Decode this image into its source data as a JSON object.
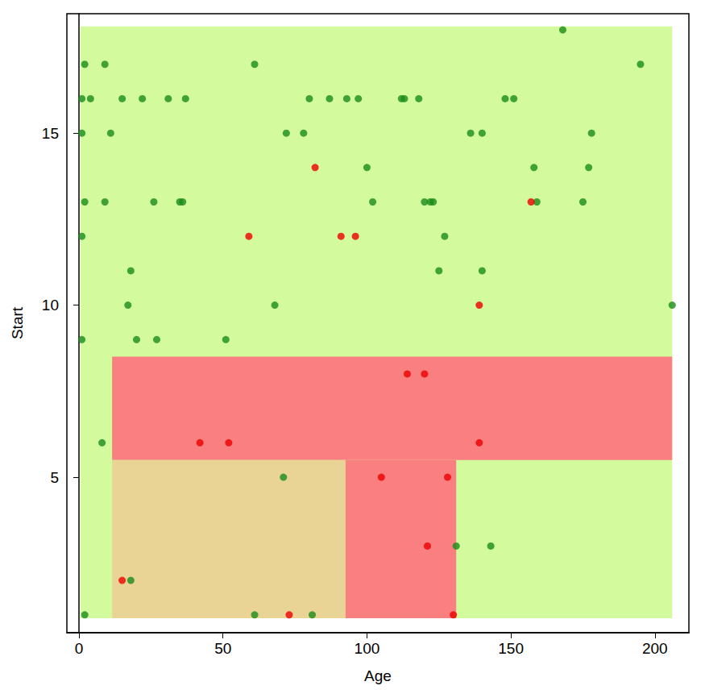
{
  "chart_data": {
    "type": "scatter",
    "x_label": "Age",
    "y_label": "Start",
    "xlim": [
      -4.2,
      211.8
    ],
    "ylim": [
      0.48,
      18.47
    ],
    "xticks": [
      0,
      50,
      100,
      150,
      200
    ],
    "yticks": [
      5,
      10,
      15
    ],
    "grid": false,
    "regions": [
      {
        "x": [
          0.5,
          206
        ],
        "y": [
          0.9,
          18.1
        ],
        "color": "#d3fa9d"
      },
      {
        "x": [
          11.5,
          206
        ],
        "y": [
          5.5,
          8.5
        ],
        "color": "#f97f80"
      },
      {
        "x": [
          92.5,
          131
        ],
        "y": [
          0.9,
          5.5
        ],
        "color": "#f97f80"
      },
      {
        "x": [
          11.5,
          92.5
        ],
        "y": [
          0.9,
          5.5
        ],
        "color": "#e9d495"
      }
    ],
    "series": [
      {
        "color": "#1a8c1a",
        "marker": "circle",
        "x": [
          168,
          2,
          9,
          61,
          195,
          1,
          4,
          15,
          22,
          31,
          37,
          80,
          87,
          93,
          97,
          112,
          113,
          118,
          148,
          151,
          1,
          11,
          72,
          78,
          136,
          140,
          178,
          100,
          158,
          177,
          2,
          9,
          26,
          35,
          36,
          102,
          120,
          122,
          123,
          159,
          175,
          1,
          127,
          18,
          125,
          140,
          17,
          68,
          206,
          1,
          20,
          27,
          51,
          8,
          71,
          131,
          143,
          18,
          2,
          61,
          81
        ],
        "y": [
          18,
          17,
          17,
          17,
          17,
          16,
          16,
          16,
          16,
          16,
          16,
          16,
          16,
          16,
          16,
          16,
          16,
          16,
          16,
          16,
          15,
          15,
          15,
          15,
          15,
          15,
          15,
          14,
          14,
          14,
          13,
          13,
          13,
          13,
          13,
          13,
          13,
          13,
          13,
          13,
          13,
          12,
          12,
          11,
          11,
          11,
          10,
          10,
          10,
          9,
          9,
          9,
          9,
          6,
          5,
          3,
          3,
          2,
          1,
          1,
          1
        ]
      },
      {
        "color": "#ee0000",
        "marker": "circle",
        "x": [
          82,
          157,
          59,
          91,
          96,
          139,
          114,
          120,
          42,
          52,
          139,
          105,
          128,
          121,
          15,
          73,
          130
        ],
        "y": [
          14,
          13,
          12,
          12,
          12,
          10,
          8,
          8,
          6,
          6,
          6,
          5,
          5,
          3,
          2,
          1,
          1
        ]
      }
    ]
  }
}
